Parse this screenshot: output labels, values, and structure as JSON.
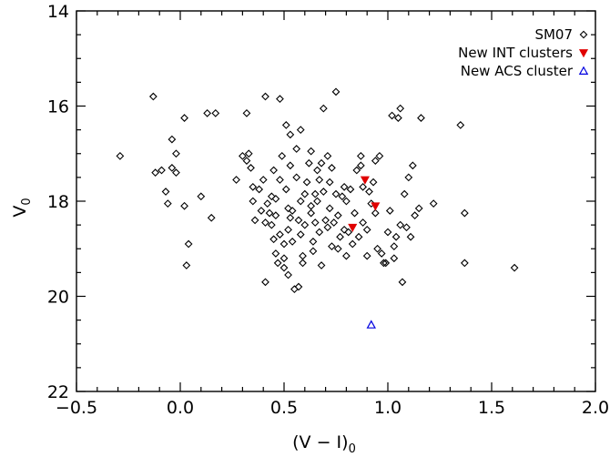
{
  "chart_data": {
    "type": "scatter",
    "xlabel": "(V − I)",
    "xlabel_subscript": "0",
    "ylabel": "V",
    "ylabel_subscript": "0",
    "xlim": [
      -0.5,
      2.0
    ],
    "ylim": [
      22,
      14
    ],
    "y_axis_inverted": true,
    "grid": false,
    "legend_placement": "top-right",
    "x_ticks": [
      "−0.5",
      "0.0",
      "0.5",
      "1.0",
      "1.5",
      "2.0"
    ],
    "y_ticks": [
      "14",
      "16",
      "18",
      "20",
      "22"
    ],
    "series": [
      {
        "name": "SM07",
        "marker": "diamond",
        "color": "#000000",
        "points": [
          [
            -0.29,
            17.05
          ],
          [
            -0.13,
            15.8
          ],
          [
            -0.12,
            17.4
          ],
          [
            -0.09,
            17.35
          ],
          [
            -0.07,
            17.8
          ],
          [
            -0.06,
            18.05
          ],
          [
            -0.04,
            16.7
          ],
          [
            -0.04,
            17.3
          ],
          [
            -0.02,
            17.0
          ],
          [
            -0.02,
            17.4
          ],
          [
            0.02,
            16.25
          ],
          [
            0.02,
            18.1
          ],
          [
            0.03,
            19.35
          ],
          [
            0.04,
            18.9
          ],
          [
            0.1,
            17.9
          ],
          [
            0.13,
            16.15
          ],
          [
            0.15,
            18.35
          ],
          [
            0.17,
            16.15
          ],
          [
            0.27,
            17.55
          ],
          [
            0.3,
            17.05
          ],
          [
            0.32,
            16.15
          ],
          [
            0.32,
            17.15
          ],
          [
            0.33,
            17.0
          ],
          [
            0.34,
            17.3
          ],
          [
            0.35,
            17.7
          ],
          [
            0.35,
            18.0
          ],
          [
            0.36,
            18.4
          ],
          [
            0.38,
            17.75
          ],
          [
            0.39,
            18.2
          ],
          [
            0.4,
            17.55
          ],
          [
            0.41,
            18.45
          ],
          [
            0.41,
            15.8
          ],
          [
            0.42,
            18.05
          ],
          [
            0.43,
            18.25
          ],
          [
            0.44,
            18.5
          ],
          [
            0.44,
            17.9
          ],
          [
            0.45,
            18.8
          ],
          [
            0.45,
            17.35
          ],
          [
            0.46,
            18.3
          ],
          [
            0.46,
            19.1
          ],
          [
            0.47,
            19.3
          ],
          [
            0.48,
            15.85
          ],
          [
            0.48,
            17.55
          ],
          [
            0.48,
            18.7
          ],
          [
            0.49,
            17.05
          ],
          [
            0.5,
            18.9
          ],
          [
            0.5,
            19.2
          ],
          [
            0.5,
            19.4
          ],
          [
            0.51,
            16.4
          ],
          [
            0.51,
            17.75
          ],
          [
            0.52,
            18.15
          ],
          [
            0.52,
            18.6
          ],
          [
            0.52,
            19.55
          ],
          [
            0.53,
            16.6
          ],
          [
            0.53,
            17.25
          ],
          [
            0.54,
            18.2
          ],
          [
            0.54,
            18.85
          ],
          [
            0.55,
            19.85
          ],
          [
            0.56,
            16.9
          ],
          [
            0.56,
            17.5
          ],
          [
            0.57,
            18.4
          ],
          [
            0.58,
            16.5
          ],
          [
            0.58,
            18.0
          ],
          [
            0.58,
            18.7
          ],
          [
            0.59,
            19.15
          ],
          [
            0.59,
            19.3
          ],
          [
            0.6,
            17.85
          ],
          [
            0.6,
            18.5
          ],
          [
            0.61,
            17.6
          ],
          [
            0.62,
            17.2
          ],
          [
            0.63,
            16.95
          ],
          [
            0.63,
            18.25
          ],
          [
            0.64,
            18.85
          ],
          [
            0.64,
            19.05
          ],
          [
            0.65,
            17.85
          ],
          [
            0.65,
            18.45
          ],
          [
            0.66,
            17.35
          ],
          [
            0.66,
            18.0
          ],
          [
            0.67,
            18.65
          ],
          [
            0.68,
            17.2
          ],
          [
            0.68,
            19.35
          ],
          [
            0.69,
            16.05
          ],
          [
            0.69,
            17.8
          ],
          [
            0.7,
            18.4
          ],
          [
            0.71,
            18.55
          ],
          [
            0.71,
            17.05
          ],
          [
            0.72,
            17.6
          ],
          [
            0.72,
            18.15
          ],
          [
            0.73,
            17.3
          ],
          [
            0.73,
            18.95
          ],
          [
            0.74,
            18.45
          ],
          [
            0.75,
            15.7
          ],
          [
            0.75,
            17.85
          ],
          [
            0.76,
            18.3
          ],
          [
            0.77,
            18.75
          ],
          [
            0.78,
            17.9
          ],
          [
            0.79,
            18.6
          ],
          [
            0.79,
            17.7
          ],
          [
            0.8,
            18.0
          ],
          [
            0.8,
            19.15
          ],
          [
            0.81,
            18.65
          ],
          [
            0.82,
            17.75
          ],
          [
            0.83,
            18.9
          ],
          [
            0.84,
            18.25
          ],
          [
            0.85,
            17.35
          ],
          [
            0.86,
            18.75
          ],
          [
            0.87,
            17.25
          ],
          [
            0.88,
            18.45
          ],
          [
            0.88,
            17.7
          ],
          [
            0.9,
            18.6
          ],
          [
            0.9,
            19.15
          ],
          [
            0.91,
            17.8
          ],
          [
            0.92,
            18.05
          ],
          [
            0.93,
            17.6
          ],
          [
            0.94,
            18.25
          ],
          [
            0.95,
            19.0
          ],
          [
            0.96,
            17.05
          ],
          [
            0.97,
            19.1
          ],
          [
            0.98,
            19.3
          ],
          [
            0.99,
            19.3
          ],
          [
            1.0,
            18.65
          ],
          [
            1.01,
            18.2
          ],
          [
            1.02,
            16.2
          ],
          [
            1.03,
            19.2
          ],
          [
            1.04,
            18.75
          ],
          [
            1.05,
            16.25
          ],
          [
            1.06,
            18.5
          ],
          [
            1.07,
            19.7
          ],
          [
            1.08,
            17.85
          ],
          [
            1.09,
            18.55
          ],
          [
            1.1,
            17.5
          ],
          [
            1.11,
            18.75
          ],
          [
            1.12,
            17.25
          ],
          [
            1.13,
            18.3
          ],
          [
            1.15,
            18.15
          ],
          [
            1.16,
            16.25
          ],
          [
            1.22,
            18.05
          ],
          [
            1.35,
            16.4
          ],
          [
            1.37,
            18.25
          ],
          [
            1.37,
            19.3
          ],
          [
            1.61,
            19.4
          ],
          [
            0.63,
            18.1
          ],
          [
            0.67,
            17.55
          ],
          [
            0.53,
            18.35
          ],
          [
            0.57,
            19.8
          ],
          [
            0.46,
            17.95
          ],
          [
            0.87,
            17.05
          ],
          [
            1.06,
            16.05
          ],
          [
            0.94,
            17.15
          ],
          [
            0.41,
            19.7
          ],
          [
            0.76,
            19.0
          ],
          [
            1.03,
            18.95
          ]
        ]
      },
      {
        "name": "New INT clusters",
        "marker": "triangle-down-filled",
        "color": "#e00000",
        "points": [
          [
            0.89,
            17.55
          ],
          [
            0.94,
            18.1
          ],
          [
            0.83,
            18.55
          ]
        ]
      },
      {
        "name": "New ACS cluster",
        "marker": "triangle-up-open",
        "color": "#0000e0",
        "points": [
          [
            0.92,
            20.6
          ]
        ]
      }
    ]
  }
}
